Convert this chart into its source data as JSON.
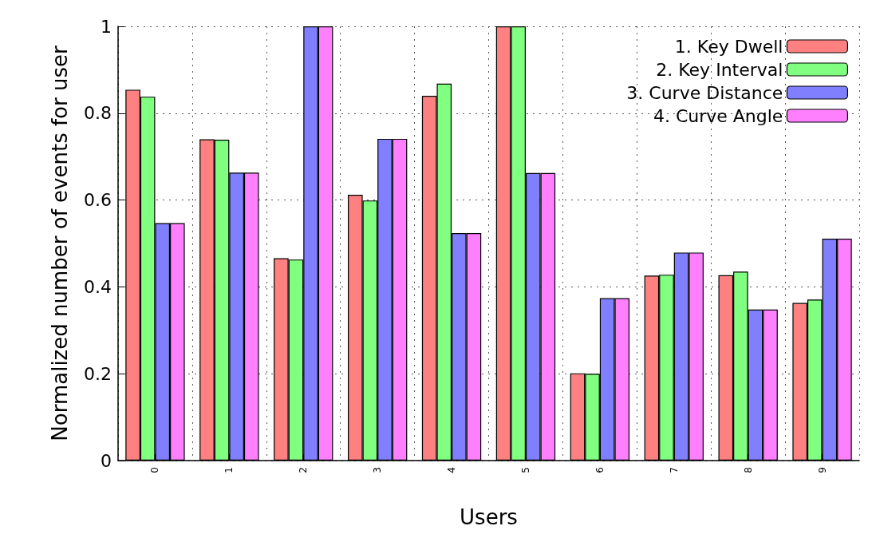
{
  "chart_data": {
    "type": "bar",
    "xlabel": "Users",
    "ylabel": "Normalized number of events for user",
    "categories": [
      "0",
      "1",
      "2",
      "3",
      "4",
      "5",
      "6",
      "7",
      "8",
      "9"
    ],
    "series": [
      {
        "name": "1. Key Dwell",
        "color": "#ff8080",
        "values": [
          0.854,
          0.74,
          0.466,
          0.612,
          0.84,
          1,
          0.201,
          0.426,
          0.427,
          0.363
        ]
      },
      {
        "name": "2. Key Interval",
        "color": "#80ff80",
        "values": [
          0.838,
          0.739,
          0.463,
          0.599,
          0.868,
          1,
          0.2,
          0.428,
          0.435,
          0.371
        ]
      },
      {
        "name": "3. Curve Distance",
        "color": "#8080ff",
        "values": [
          0.547,
          0.663,
          1,
          0.741,
          0.524,
          0.662,
          0.374,
          0.479,
          0.348,
          0.511
        ]
      },
      {
        "name": "4. Curve Angle",
        "color": "#ff80ff",
        "values": [
          0.547,
          0.663,
          1,
          0.741,
          0.524,
          0.662,
          0.374,
          0.479,
          0.348,
          0.511
        ]
      }
    ],
    "ylim": [
      0,
      1
    ],
    "yticks": [
      0,
      0.2,
      0.4,
      0.6,
      0.8,
      1
    ],
    "grid": true,
    "legend": "top right"
  }
}
